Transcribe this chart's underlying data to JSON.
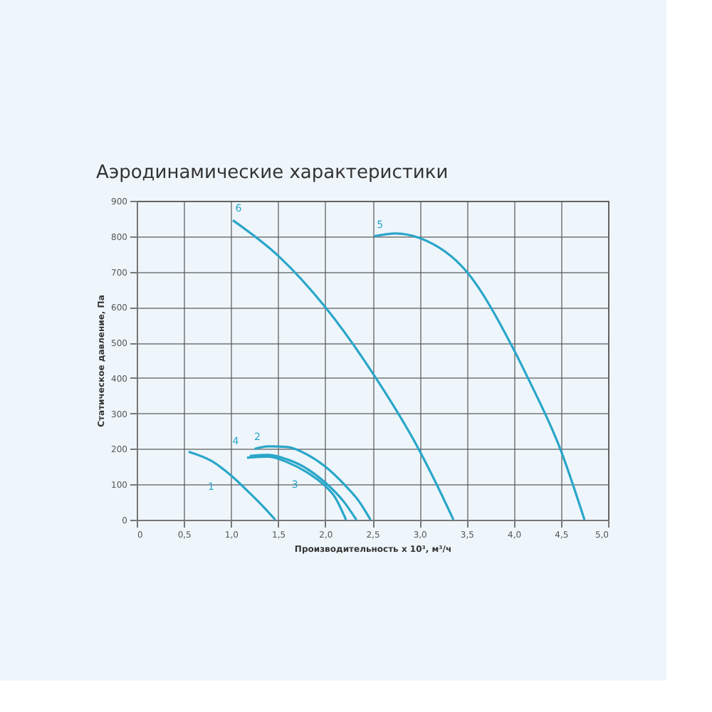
{
  "chart_data": {
    "type": "line",
    "title": "Аэродинамические характеристики",
    "xlabel": "Производительность x 10³, м³/ч",
    "ylabel": "Статическое давление, Па",
    "xlim": [
      0,
      5
    ],
    "xticks": [
      0,
      {
        "value": 0.5,
        "label": "0,5"
      },
      {
        "value": 1,
        "label": "1,0"
      },
      {
        "value": 1.5,
        "label": "1,5"
      },
      {
        "value": 2,
        "label": "2,0"
      },
      {
        "value": 2.5,
        "label": "2,5"
      },
      {
        "value": 3,
        "label": "3,0"
      },
      {
        "value": 3.5,
        "label": "3,5"
      },
      {
        "value": 4,
        "label": "4,0"
      },
      {
        "value": 4.5,
        "label": "4,5"
      },
      {
        "value": 5,
        "label": "5,0"
      }
    ],
    "ylim": [
      0,
      900
    ],
    "yticks": [
      0,
      100,
      200,
      300,
      400,
      500,
      600,
      700,
      800,
      900
    ],
    "grid": true,
    "marker": "none",
    "line_style": "solid",
    "series": [
      {
        "name": "1",
        "color": "#2aa6c9",
        "x": [
          0.55,
          0.8,
          1.0,
          1.2,
          1.35,
          1.47
        ],
        "values": [
          192,
          165,
          125,
          75,
          35,
          0
        ]
      },
      {
        "name": "2",
        "color": "#2aa6c9",
        "x": [
          1.25,
          1.4,
          1.6,
          1.8,
          2.0,
          2.2,
          2.35,
          2.48
        ],
        "values": [
          200,
          207,
          205,
          185,
          150,
          100,
          55,
          0
        ]
      },
      {
        "name": "3",
        "color": "#2aa6c9",
        "x": [
          1.17,
          1.4,
          1.6,
          1.8,
          2.0,
          2.1,
          2.22
        ],
        "values": [
          175,
          178,
          162,
          135,
          95,
          65,
          0
        ]
      },
      {
        "name": "4",
        "color": "#2aa6c9",
        "x": [
          1.2,
          1.4,
          1.6,
          1.8,
          2.0,
          2.2,
          2.33
        ],
        "values": [
          180,
          183,
          170,
          145,
          105,
          50,
          0
        ]
      },
      {
        "name": "5",
        "color": "#2aa6c9",
        "x": [
          2.52,
          2.75,
          3.0,
          3.5,
          4.0,
          4.15,
          4.5,
          4.75
        ],
        "values": [
          800,
          808,
          795,
          700,
          480,
          400,
          195,
          0
        ]
      },
      {
        "name": "6",
        "color": "#2aa6c9",
        "x": [
          1.02,
          1.5,
          2.0,
          2.5,
          3.0,
          3.2,
          3.36
        ],
        "values": [
          845,
          745,
          600,
          415,
          195,
          90,
          0
        ]
      }
    ]
  }
}
